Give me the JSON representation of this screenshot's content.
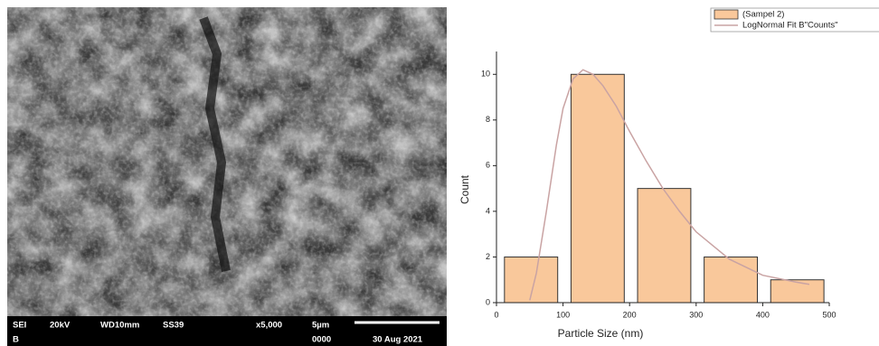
{
  "sem_image": {
    "labels": [
      "SEI",
      "B",
      "20kV",
      "WD10mm",
      "SS39",
      "x5,000",
      "5µm",
      "0000",
      "30 Aug 2021"
    ]
  },
  "chart_data": {
    "type": "histogram",
    "x_label": "Particle Size (nm)",
    "y_label": "Count",
    "bins": [
      0,
      100,
      200,
      300,
      400,
      500
    ],
    "series": [
      {
        "name": "(Sampel 2)",
        "color": "#f9c89b",
        "values": [
          2,
          10,
          5,
          2,
          1
        ]
      },
      {
        "name": "LogNormal Fit B\"Counts\"",
        "color": "#c9a3a3",
        "type": "line",
        "x": [
          50,
          60,
          75,
          90,
          100,
          115,
          130,
          145,
          160,
          180,
          200,
          225,
          250,
          275,
          300,
          325,
          350,
          400,
          450,
          470
        ],
        "values": [
          0.1,
          1.3,
          4,
          6.9,
          8.5,
          9.8,
          10.2,
          10,
          9.5,
          8.6,
          7.5,
          6.2,
          5,
          4,
          3.1,
          2.5,
          1.9,
          1.2,
          0.9,
          0.8
        ]
      }
    ],
    "xlim": [
      0,
      500
    ],
    "xticks": [
      0,
      100,
      200,
      300,
      400,
      500
    ],
    "ylim": [
      0,
      11
    ],
    "yticks": [
      0,
      2,
      4,
      6,
      8,
      10
    ],
    "legend": "top-right"
  }
}
